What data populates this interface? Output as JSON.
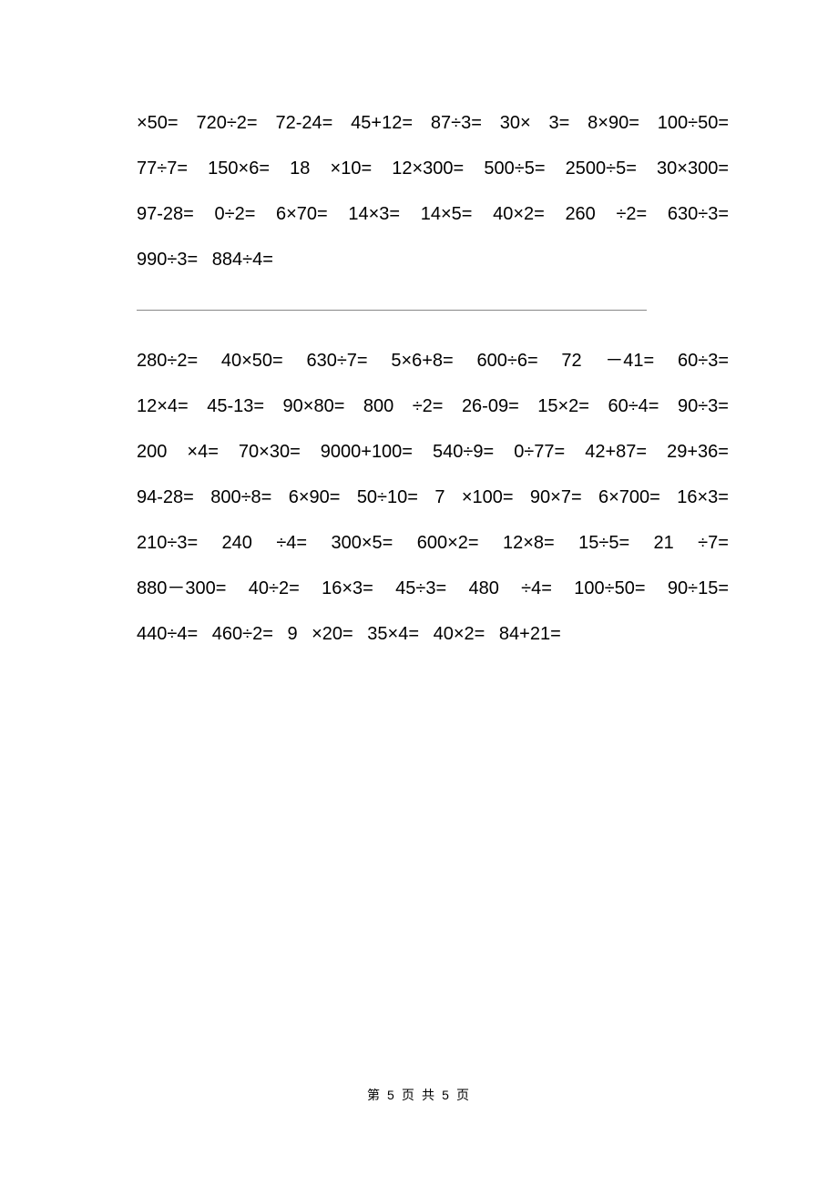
{
  "section1": {
    "items": [
      "×50=",
      "720÷2=",
      "72-24=",
      "45+12=",
      "87÷3=",
      "30×",
      "3=",
      "8×90=",
      "100÷50=",
      "77÷7=",
      "150×6=",
      "18",
      "×10=",
      "12×300=",
      "500÷5=",
      "2500÷5=",
      "30×300=",
      "97-28=",
      "0÷2=",
      "6×70=",
      "14×3=",
      "14×5=",
      "40×2=",
      "260",
      "÷2=",
      "630÷3=",
      "990÷3=",
      "884÷4="
    ]
  },
  "section2": {
    "items": [
      "280÷2=",
      "40×50=",
      "630÷7=",
      "5×6+8=",
      "600÷6=",
      "72",
      "－41=",
      "60÷3=",
      "12×4=",
      "45-13=",
      "90×80=",
      "800",
      "÷2=",
      "26-09=",
      "15×2=",
      "60÷4=",
      "90÷3=",
      "200",
      "×4=",
      "70×30=",
      "9000+100=",
      "540÷9=",
      "0÷77=",
      "42+87=",
      "29+36=",
      "94-28=",
      "800÷8=",
      "6×90=",
      "50÷10=",
      "7",
      "×100=",
      "90×7=",
      "6×700=",
      "16×3=",
      "210÷3=",
      "240",
      "÷4=",
      "300×5=",
      "600×2=",
      "12×8=",
      "15÷5=",
      "21",
      "÷7=",
      "880－300=",
      "40÷2=",
      "16×3=",
      "45÷3=",
      "480",
      "÷4=",
      "100÷50=",
      "90÷15=",
      "440÷4=",
      "460÷2=",
      "9",
      "×20=",
      "35×4=",
      "40×2=",
      "84+21="
    ]
  },
  "footer": {
    "text": "第 5 页 共 5 页"
  },
  "style": {
    "text_color": "#000000",
    "background_color": "#ffffff",
    "divider_color": "#888888",
    "body_fontsize": 20,
    "footer_fontsize": 14,
    "line_height": 2.5
  }
}
